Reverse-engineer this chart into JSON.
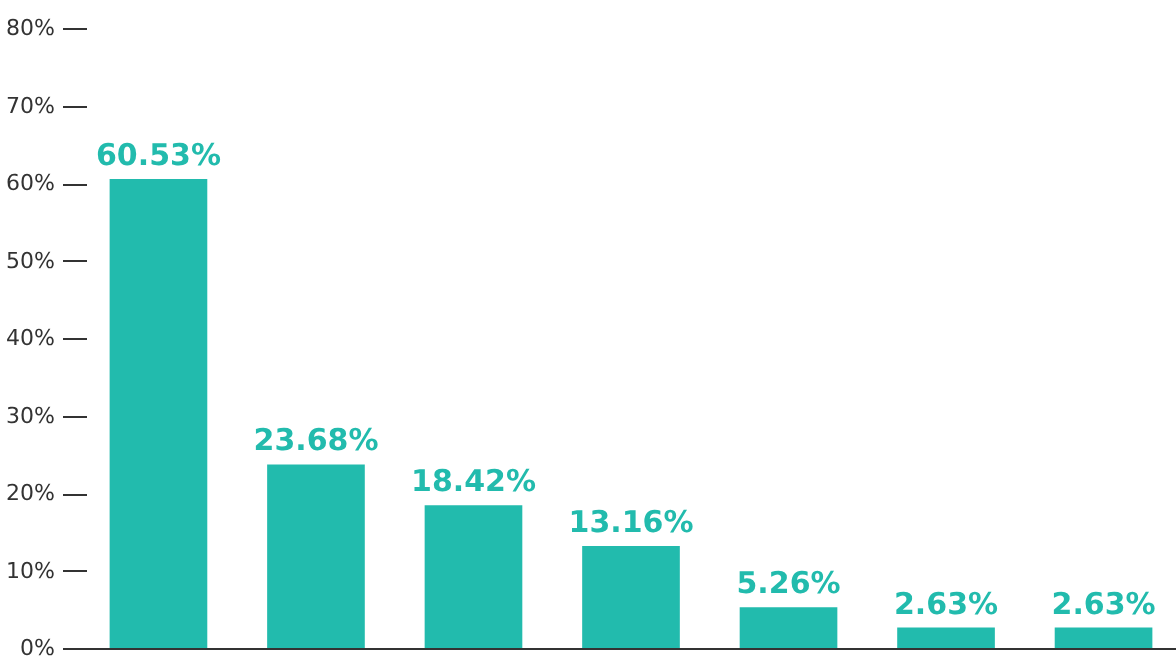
{
  "chart_data": {
    "type": "bar",
    "categories": [
      null,
      null,
      null,
      null,
      null,
      null,
      null
    ],
    "values": [
      60.53,
      23.68,
      18.42,
      13.16,
      5.26,
      2.63,
      2.63
    ],
    "value_labels": [
      "60.53%",
      "23.68%",
      "18.42%",
      "13.16%",
      "5.26%",
      "2.63%",
      "2.63%"
    ],
    "color": "#22bbad",
    "ylim": [
      0,
      80
    ],
    "yticks": [
      {
        "value": 0,
        "label": "0%"
      },
      {
        "value": 10,
        "label": "10%"
      },
      {
        "value": 20,
        "label": "20%"
      },
      {
        "value": 30,
        "label": "30%"
      },
      {
        "value": 40,
        "label": "40%"
      },
      {
        "value": 50,
        "label": "50%"
      },
      {
        "value": 60,
        "label": "60%"
      },
      {
        "value": 70,
        "label": "70%"
      },
      {
        "value": 80,
        "label": "80%"
      }
    ],
    "tick_labels": "y",
    "grid": false
  }
}
